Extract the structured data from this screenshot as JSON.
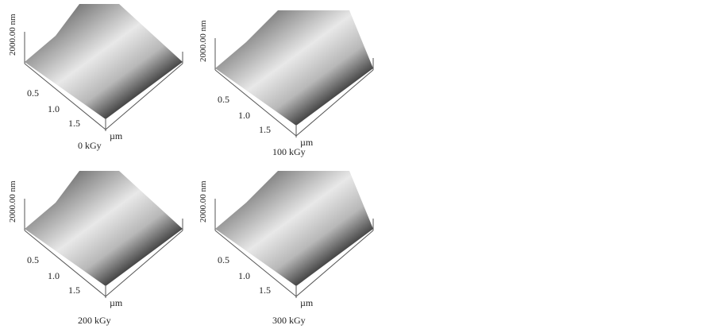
{
  "figure": {
    "z_axis_label": "2000.00 nm",
    "x_axis_unit": "µm",
    "x_ticks": [
      "0.5",
      "1.0",
      "1.5"
    ],
    "panels": [
      {
        "label": "0 kGy"
      },
      {
        "label": "100 kGy"
      },
      {
        "label": "200 kGy"
      },
      {
        "label": "300 kGy"
      }
    ],
    "colors": {
      "dark": "#4a4a4a",
      "light": "#e8e8e8",
      "axis": "#555555"
    }
  }
}
